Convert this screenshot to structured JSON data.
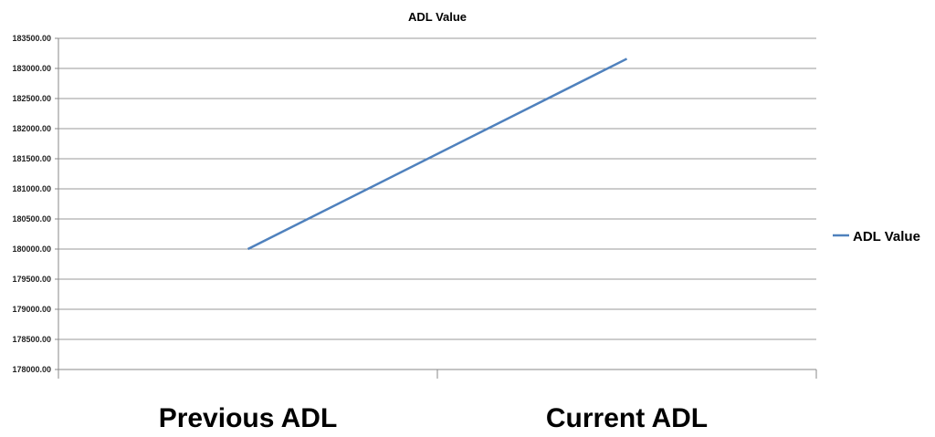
{
  "chart_data": {
    "type": "line",
    "title": "ADL Value",
    "categories": [
      "Previous ADL",
      "Current ADL"
    ],
    "series": [
      {
        "name": "ADL Value",
        "values": [
          180000.0,
          183160.0
        ],
        "color": "#4f81bd"
      }
    ],
    "ylim": [
      178000,
      183500
    ],
    "ytick_step": 500,
    "yticks": [
      "178000.00",
      "178500.00",
      "179000.00",
      "179500.00",
      "180000.00",
      "180500.00",
      "181000.00",
      "181500.00",
      "182000.00",
      "182500.00",
      "183000.00",
      "183500.00"
    ],
    "grid": true,
    "legend": "right"
  }
}
